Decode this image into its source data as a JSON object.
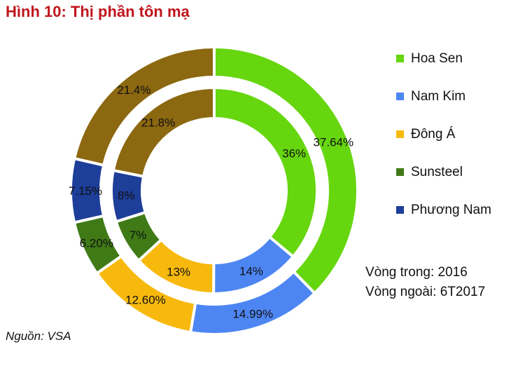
{
  "title": "Hình 10: Thị phần tôn mạ",
  "source": "Nguồn: VSA",
  "note": {
    "inner": "Vòng trong: 2016",
    "outer": "Vòng ngoài: 6T2017"
  },
  "chart_data": {
    "type": "doughnut",
    "title": "Hình 10: Thị phần tôn mạ",
    "categories": [
      "Hoa Sen",
      "Nam Kim",
      "Đông Á",
      "Sunsteel",
      "Phương Nam",
      ""
    ],
    "colors": [
      "#66d60f",
      "#4d86f3",
      "#f7b90d",
      "#3f7a16",
      "#1d3e99",
      "#8c6810"
    ],
    "series": [
      {
        "name": "Vòng ngoài: 6T2017",
        "ring": "outer",
        "values": [
          37.64,
          14.99,
          12.6,
          6.2,
          7.15,
          21.4
        ],
        "labels": [
          "37.64%",
          "14.99%",
          "12.60%",
          "6.20%",
          "7.15%",
          "21.4%"
        ]
      },
      {
        "name": "Vòng trong: 2016",
        "ring": "inner",
        "values": [
          36,
          14,
          13,
          7,
          8,
          21.8
        ],
        "labels": [
          "36%",
          "14%",
          "13%",
          "7%",
          "8%",
          "21.8%"
        ]
      }
    ],
    "legend": {
      "position": "right",
      "items": [
        "Hoa Sen",
        "Nam Kim",
        "Đông Á",
        "Sunsteel",
        "Phương Nam"
      ]
    }
  }
}
